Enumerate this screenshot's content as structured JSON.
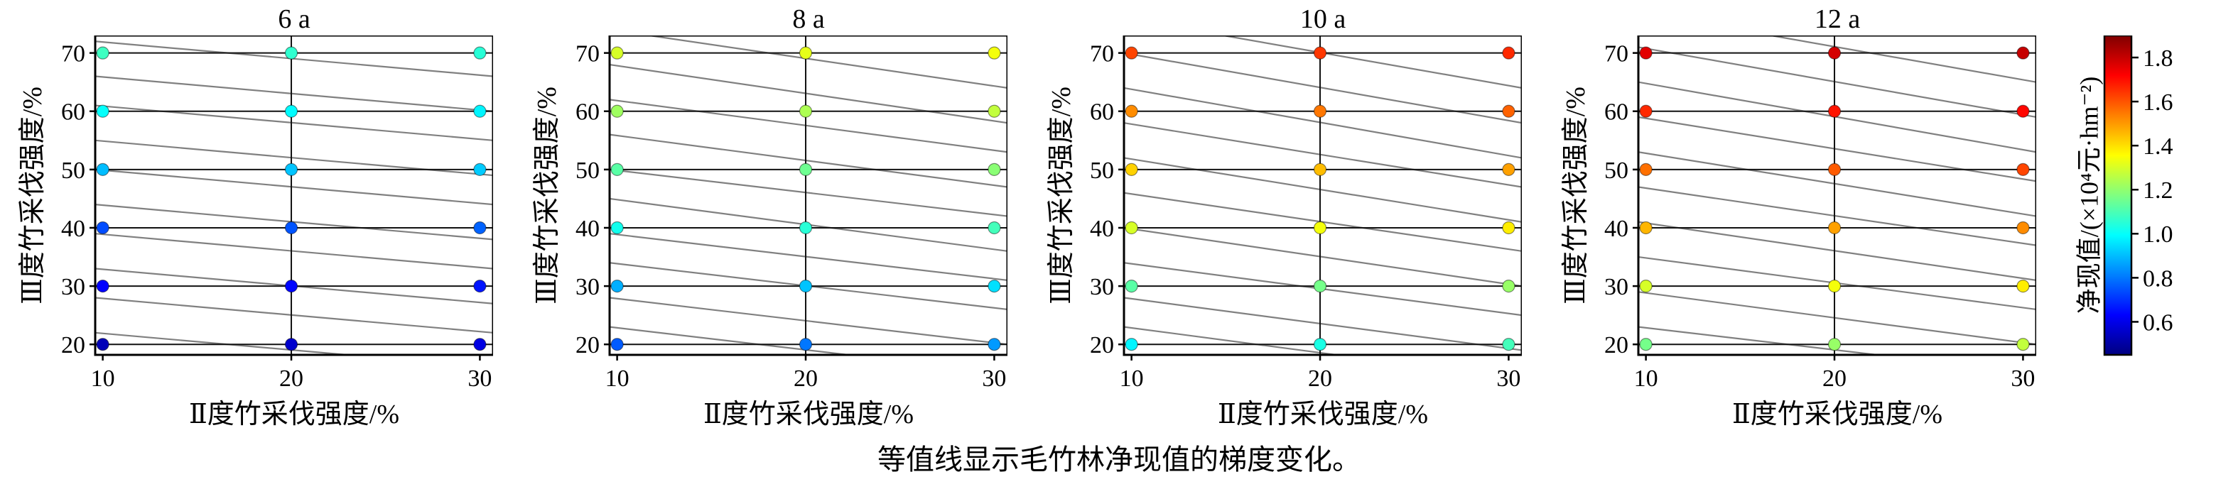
{
  "caption": "等值线显示毛竹林净现值的梯度变化。",
  "axes": {
    "xlabel": "Ⅱ度竹采伐强度/%",
    "ylabel": "Ⅲ度竹采伐强度/%",
    "xticks": [
      "10",
      "20",
      "30"
    ],
    "yticks": [
      "70",
      "60",
      "50",
      "40",
      "30",
      "20"
    ],
    "xlim": [
      9.6,
      30.7
    ],
    "ylim": [
      18.2,
      73.0
    ],
    "grid": "on",
    "grid_color": "#111111",
    "contour_color": "#808080"
  },
  "colorbar": {
    "label": "净现值/(×10⁴元·hm⁻²)",
    "ticks": [
      "0.6",
      "0.8",
      "1.0",
      "1.2",
      "1.4",
      "1.6",
      "1.8"
    ],
    "range": [
      0.45,
      1.9
    ],
    "colormap": "jet"
  },
  "chart_data": [
    {
      "type": "scatter",
      "title": "6 a",
      "xlabel": "Ⅱ度竹采伐强度/%",
      "ylabel": "Ⅲ度竹采伐强度/%",
      "x": [
        10,
        20,
        30
      ],
      "y": [
        70,
        60,
        50,
        40,
        30,
        20
      ],
      "npv_grid": [
        [
          1.08,
          1.06,
          1.05
        ],
        [
          1.0,
          0.99,
          0.98
        ],
        [
          0.9,
          0.91,
          0.92
        ],
        [
          0.74,
          0.75,
          0.77
        ],
        [
          0.63,
          0.64,
          0.66
        ],
        [
          0.53,
          0.56,
          0.59
        ]
      ],
      "contour_segments": [
        [
          72,
          66
        ],
        [
          66,
          60
        ],
        [
          61,
          55
        ],
        [
          55,
          49
        ],
        [
          50,
          44
        ],
        [
          44,
          38
        ],
        [
          39,
          33
        ],
        [
          33,
          27
        ],
        [
          28,
          22
        ],
        [
          22,
          16
        ]
      ]
    },
    {
      "type": "scatter",
      "title": "8 a",
      "xlabel": "Ⅱ度竹采伐强度/%",
      "ylabel": "Ⅲ度竹采伐强度/%",
      "x": [
        10,
        20,
        30
      ],
      "y": [
        70,
        60,
        50,
        40,
        30,
        20
      ],
      "npv_grid": [
        [
          1.3,
          1.32,
          1.34
        ],
        [
          1.22,
          1.24,
          1.27
        ],
        [
          1.12,
          1.15,
          1.19
        ],
        [
          1.02,
          1.05,
          1.09
        ],
        [
          0.88,
          0.91,
          0.95
        ],
        [
          0.76,
          0.8,
          0.85
        ]
      ],
      "contour_segments": [
        [
          74,
          64
        ],
        [
          68,
          58
        ],
        [
          62,
          53
        ],
        [
          56,
          47
        ],
        [
          50,
          42
        ],
        [
          45,
          36
        ],
        [
          39,
          31
        ],
        [
          34,
          26
        ],
        [
          28,
          20
        ],
        [
          23,
          15
        ]
      ]
    },
    {
      "type": "scatter",
      "title": "10 a",
      "xlabel": "Ⅱ度竹采伐强度/%",
      "ylabel": "Ⅲ度竹采伐强度/%",
      "x": [
        10,
        20,
        30
      ],
      "y": [
        70,
        60,
        50,
        40,
        30,
        20
      ],
      "npv_grid": [
        [
          1.62,
          1.64,
          1.66
        ],
        [
          1.52,
          1.55,
          1.58
        ],
        [
          1.42,
          1.45,
          1.49
        ],
        [
          1.3,
          1.34,
          1.38
        ],
        [
          1.12,
          1.16,
          1.21
        ],
        [
          0.98,
          1.03,
          1.09
        ]
      ],
      "contour_segments": [
        [
          76,
          64
        ],
        [
          70,
          58
        ],
        [
          64,
          52
        ],
        [
          58,
          47
        ],
        [
          52,
          41
        ],
        [
          46,
          36
        ],
        [
          40,
          30
        ],
        [
          34,
          25
        ],
        [
          28,
          19
        ],
        [
          23,
          14
        ]
      ]
    },
    {
      "type": "scatter",
      "title": "12 a",
      "xlabel": "Ⅱ度竹采伐强度/%",
      "ylabel": "Ⅲ度竹采伐强度/%",
      "x": [
        10,
        20,
        30
      ],
      "y": [
        70,
        60,
        50,
        40,
        30,
        20
      ],
      "npv_grid": [
        [
          1.76,
          1.78,
          1.8
        ],
        [
          1.66,
          1.69,
          1.71
        ],
        [
          1.56,
          1.59,
          1.62
        ],
        [
          1.46,
          1.49,
          1.52
        ],
        [
          1.3,
          1.34,
          1.38
        ],
        [
          1.16,
          1.21,
          1.27
        ]
      ],
      "contour_segments": [
        [
          77,
          65
        ],
        [
          71,
          59
        ],
        [
          65,
          53
        ],
        [
          59,
          48
        ],
        [
          53,
          42
        ],
        [
          47,
          37
        ],
        [
          41,
          31
        ],
        [
          35,
          26
        ],
        [
          29,
          20
        ],
        [
          23,
          15
        ]
      ]
    }
  ]
}
